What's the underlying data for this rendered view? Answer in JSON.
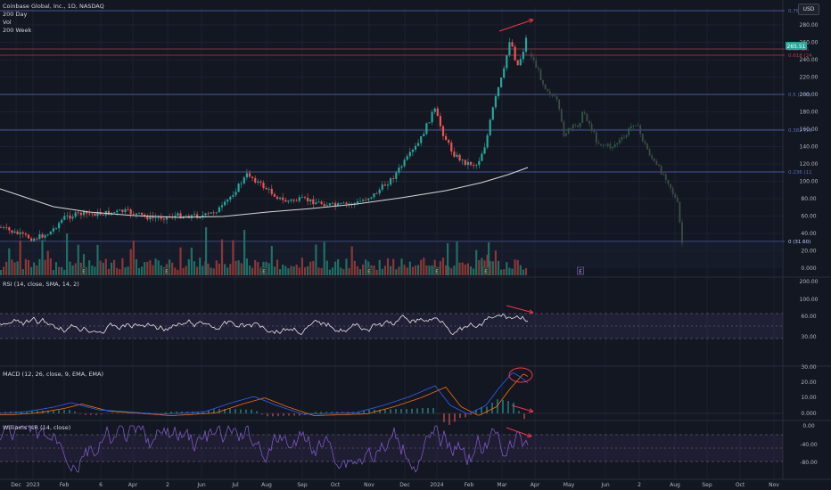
{
  "header": {
    "symbol_line": "Coinbase Global, Inc., 1D, NASDAQ",
    "indicators": [
      "200 Day",
      "Vol",
      "200 Week"
    ],
    "currency_button": "USD"
  },
  "panes": {
    "rsi_label": "RSI (14, close, SMA, 14, 2)",
    "macd_label": "MACD (12, 26, close, 9, EMA, EMA)",
    "williams_label": "Williams %R (14, close)"
  },
  "price_axis": [
    "280.00",
    "260.00",
    "240.00",
    "220.00",
    "200.00",
    "180.00",
    "160.00",
    "140.00",
    "120.00",
    "100.00",
    "80.00",
    "60.00",
    "40.00",
    "20.00",
    "0.000"
  ],
  "rsi_axis": [
    "200.00",
    "100.00",
    "60.00",
    "30.00"
  ],
  "macd_axis": [
    "30.00",
    "20.00",
    "10.00",
    "0.000"
  ],
  "williams_axis": [
    "0.00",
    "-40.00",
    "-80.00"
  ],
  "time_axis": [
    "Dec",
    "2023",
    "Feb",
    "6",
    "Apr",
    "2",
    "Jun",
    "Jul",
    "Aug",
    "Sep",
    "Oct",
    "Nov",
    "Dec",
    "2024",
    "Feb",
    "Mar",
    "Apr",
    "May",
    "Jun",
    "2",
    "Aug",
    "Sep",
    "Oct",
    "Nov"
  ],
  "last_price": "265.51",
  "fib_levels": [
    {
      "label": "0.786 (25"
    },
    {
      "label": "0.65 (26"
    },
    {
      "label": "0.618 (24"
    },
    {
      "label": "0.5 (200)"
    },
    {
      "label": "0.382 (16"
    },
    {
      "label": "0.236 (11"
    },
    {
      "label": "0 (31.60)"
    }
  ],
  "event_markers": [
    "E",
    "E",
    "E",
    "E",
    "E",
    "E",
    "E"
  ],
  "colors": {
    "background": "#131722",
    "up": "#26a69a",
    "down": "#ef5350",
    "fib_line": "#5a6bbf",
    "resistance": "#b33b47",
    "ma_200": "#e0e0e0",
    "rsi": "#e6e6e6",
    "macd": "#2962ff",
    "signal": "#ff6d00",
    "williams": "#7e57c2",
    "annotation": "#f23645",
    "projection": "#3d5a4a"
  }
}
